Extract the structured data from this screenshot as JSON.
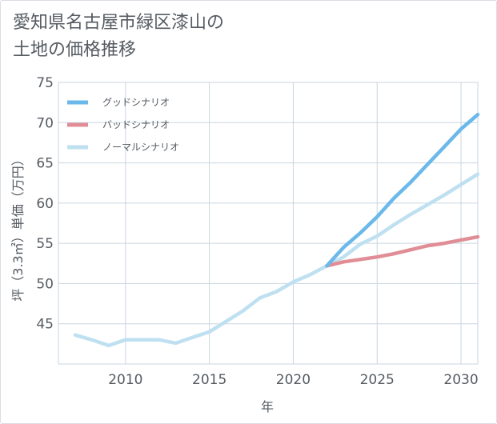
{
  "title_line1": "愛知県名古屋市緑区漆山の",
  "title_line2": "土地の価格推移",
  "chart_data": {
    "type": "line",
    "xlabel": "年",
    "ylabel": "坪（3.3㎡）単価（万円）",
    "xlim": [
      2006,
      2031
    ],
    "ylim": [
      40,
      75
    ],
    "xticks": [
      2010,
      2015,
      2020,
      2025,
      2030
    ],
    "yticks": [
      45,
      50,
      55,
      60,
      65,
      70,
      75
    ],
    "grid": true,
    "legend_position": "top-left",
    "series": [
      {
        "name": "グッドシナリオ",
        "color": "#6bb8ea",
        "points": [
          [
            2022,
            52.2
          ],
          [
            2023,
            54.5
          ],
          [
            2024,
            56.3
          ],
          [
            2025,
            58.3
          ],
          [
            2026,
            60.6
          ],
          [
            2027,
            62.6
          ],
          [
            2028,
            64.8
          ],
          [
            2029,
            67.0
          ],
          [
            2030,
            69.2
          ],
          [
            2031,
            71.0
          ]
        ]
      },
      {
        "name": "バッドシナリオ",
        "color": "#e08d96",
        "points": [
          [
            2022,
            52.2
          ],
          [
            2023,
            52.7
          ],
          [
            2024,
            53.0
          ],
          [
            2025,
            53.3
          ],
          [
            2026,
            53.7
          ],
          [
            2027,
            54.2
          ],
          [
            2028,
            54.7
          ],
          [
            2029,
            55.0
          ],
          [
            2030,
            55.4
          ],
          [
            2031,
            55.8
          ]
        ]
      },
      {
        "name": "ノーマルシナリオ",
        "color": "#bfe0f0",
        "points": [
          [
            2007,
            43.6
          ],
          [
            2008,
            43.0
          ],
          [
            2009,
            42.3
          ],
          [
            2010,
            43.0
          ],
          [
            2011,
            43.0
          ],
          [
            2012,
            43.0
          ],
          [
            2013,
            42.6
          ],
          [
            2014,
            43.3
          ],
          [
            2015,
            44.0
          ],
          [
            2016,
            45.3
          ],
          [
            2017,
            46.6
          ],
          [
            2018,
            48.2
          ],
          [
            2019,
            49.0
          ],
          [
            2020,
            50.2
          ],
          [
            2021,
            51.1
          ],
          [
            2022,
            52.2
          ],
          [
            2023,
            53.3
          ],
          [
            2024,
            54.9
          ],
          [
            2025,
            55.9
          ],
          [
            2026,
            57.3
          ],
          [
            2027,
            58.6
          ],
          [
            2028,
            59.8
          ],
          [
            2029,
            61.0
          ],
          [
            2030,
            62.3
          ],
          [
            2031,
            63.6
          ]
        ]
      }
    ]
  }
}
